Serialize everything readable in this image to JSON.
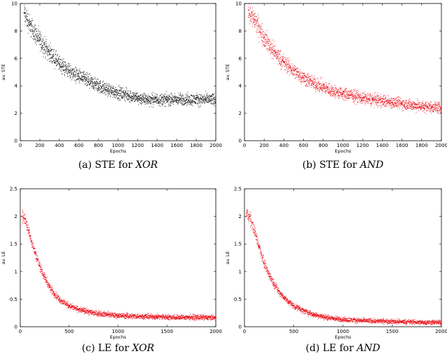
{
  "chart_data": [
    {
      "type": "scatter",
      "caption": {
        "prefix": "(a) STE for ",
        "italic": "XOR"
      },
      "xlabel": "Epochs",
      "ylabel": "av. STE",
      "xlim": [
        0,
        2000
      ],
      "ylim": [
        0,
        10
      ],
      "xticks": [
        0,
        200,
        400,
        600,
        800,
        1000,
        1200,
        1400,
        1600,
        1800,
        2000
      ],
      "yticks": [
        0,
        2,
        4,
        6,
        8,
        10
      ],
      "color": "#000000",
      "series": [
        {
          "name": "av. STE",
          "x": [
            40,
            100,
            200,
            300,
            400,
            500,
            600,
            700,
            800,
            900,
            1000,
            1100,
            1200,
            1300,
            1400,
            1500,
            1600,
            1700,
            1800,
            1900,
            2000
          ],
          "y": [
            9.3,
            8.4,
            7.3,
            6.4,
            5.6,
            5.1,
            4.7,
            4.3,
            4.0,
            3.7,
            3.5,
            3.3,
            3.1,
            3.0,
            3.0,
            3.0,
            3.0,
            3.0,
            3.0,
            3.0,
            3.0
          ]
        }
      ]
    },
    {
      "type": "scatter",
      "caption": {
        "prefix": "(b) STE for ",
        "italic": "AND"
      },
      "xlabel": "Epochs",
      "ylabel": "av. STE",
      "xlim": [
        0,
        2000
      ],
      "ylim": [
        0,
        10
      ],
      "xticks": [
        0,
        200,
        400,
        600,
        800,
        1000,
        1200,
        1400,
        1600,
        1800,
        2000
      ],
      "yticks": [
        0,
        2,
        4,
        6,
        8,
        10
      ],
      "color": "#e8000b",
      "series": [
        {
          "name": "av. STE",
          "x": [
            40,
            100,
            200,
            300,
            400,
            500,
            600,
            700,
            800,
            900,
            1000,
            1100,
            1200,
            1300,
            1400,
            1500,
            1600,
            1700,
            1800,
            1900,
            2000
          ],
          "y": [
            9.5,
            8.8,
            7.5,
            6.5,
            5.7,
            5.1,
            4.6,
            4.2,
            3.9,
            3.6,
            3.4,
            3.3,
            3.1,
            3.0,
            2.9,
            2.8,
            2.7,
            2.6,
            2.5,
            2.45,
            2.4
          ]
        }
      ]
    },
    {
      "type": "scatter",
      "caption": {
        "prefix": "(c) LE for ",
        "italic": "XOR"
      },
      "xlabel": "Epochs",
      "ylabel": "av. LE",
      "xlim": [
        0,
        2000
      ],
      "ylim": [
        0,
        2.5
      ],
      "xticks": [
        0,
        500,
        1000,
        1500,
        2000
      ],
      "yticks": [
        0,
        0.5,
        1,
        1.5,
        2,
        2.5
      ],
      "color": "#e8000b",
      "series": [
        {
          "name": "av. LE",
          "x": [
            20,
            50,
            100,
            150,
            200,
            250,
            300,
            350,
            400,
            450,
            500,
            600,
            700,
            800,
            900,
            1000,
            1200,
            1400,
            1600,
            1800,
            2000
          ],
          "y": [
            2.0,
            1.95,
            1.65,
            1.35,
            1.1,
            0.9,
            0.72,
            0.6,
            0.5,
            0.43,
            0.38,
            0.31,
            0.27,
            0.24,
            0.22,
            0.2,
            0.19,
            0.18,
            0.17,
            0.17,
            0.16
          ]
        }
      ]
    },
    {
      "type": "scatter",
      "caption": {
        "prefix": "(d) LE for ",
        "italic": "AND"
      },
      "xlabel": "Epochs",
      "ylabel": "av. LE",
      "xlim": [
        0,
        2000
      ],
      "ylim": [
        0,
        2.5
      ],
      "xticks": [
        0,
        500,
        1000,
        1500,
        2000
      ],
      "yticks": [
        0,
        0.5,
        1,
        1.5,
        2,
        2.5
      ],
      "color": "#e8000b",
      "series": [
        {
          "name": "av. LE",
          "x": [
            20,
            50,
            100,
            150,
            200,
            250,
            300,
            350,
            400,
            450,
            500,
            600,
            700,
            800,
            900,
            1000,
            1200,
            1400,
            1600,
            1800,
            2000
          ],
          "y": [
            2.05,
            2.0,
            1.75,
            1.45,
            1.15,
            0.95,
            0.78,
            0.64,
            0.53,
            0.45,
            0.38,
            0.29,
            0.22,
            0.18,
            0.15,
            0.13,
            0.11,
            0.1,
            0.09,
            0.08,
            0.08
          ]
        }
      ]
    }
  ]
}
